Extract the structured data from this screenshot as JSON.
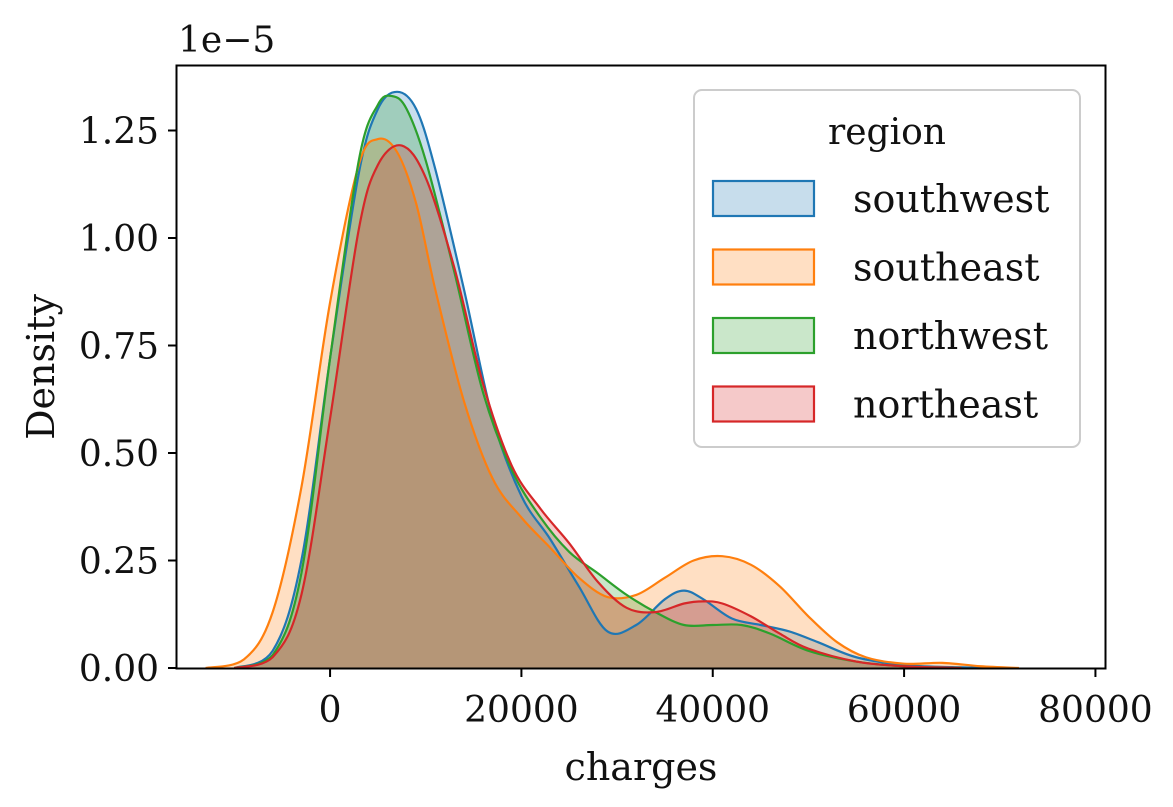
{
  "chart_data": {
    "type": "area",
    "title": "",
    "xlabel": "charges",
    "ylabel": "Density",
    "offset_text": "1e−5",
    "xlim": [
      -16000,
      81000
    ],
    "ylim": [
      0,
      1.4
    ],
    "xticks": [
      0,
      20000,
      40000,
      60000,
      80000
    ],
    "xtick_labels": [
      "0",
      "20000",
      "40000",
      "60000",
      "80000"
    ],
    "yticks": [
      0,
      0.25,
      0.5,
      0.75,
      1.0,
      1.25
    ],
    "ytick_labels": [
      "0.00",
      "0.25",
      "0.50",
      "0.75",
      "1.00",
      "1.25"
    ],
    "grid": false,
    "legend": {
      "title": "region",
      "placement": "upper right"
    },
    "series": [
      {
        "name": "southwest",
        "color": "#1f77b4",
        "x": [
          -10000,
          -6000,
          -3000,
          0,
          3000,
          5000,
          7000,
          9000,
          11000,
          14000,
          17000,
          20000,
          23000,
          26000,
          29000,
          32000,
          35000,
          37000,
          39000,
          42000,
          45000,
          48000,
          51000,
          55000,
          60000,
          65000,
          70000
        ],
        "y": [
          0.0,
          0.04,
          0.25,
          0.72,
          1.15,
          1.3,
          1.34,
          1.3,
          1.16,
          0.88,
          0.58,
          0.4,
          0.3,
          0.19,
          0.085,
          0.1,
          0.16,
          0.18,
          0.16,
          0.115,
          0.1,
          0.085,
          0.06,
          0.025,
          0.007,
          0.002,
          0.0
        ]
      },
      {
        "name": "southeast",
        "color": "#ff7f0e",
        "x": [
          -13000,
          -9000,
          -6000,
          -3000,
          0,
          3000,
          5000,
          7000,
          9000,
          11000,
          14000,
          17000,
          20000,
          23000,
          26000,
          29000,
          32000,
          35000,
          38000,
          41000,
          44000,
          47000,
          50000,
          53000,
          56000,
          60000,
          64000,
          68000,
          72000
        ],
        "y": [
          0.0,
          0.02,
          0.13,
          0.42,
          0.85,
          1.17,
          1.23,
          1.2,
          1.08,
          0.88,
          0.62,
          0.44,
          0.35,
          0.28,
          0.21,
          0.165,
          0.17,
          0.21,
          0.25,
          0.26,
          0.24,
          0.19,
          0.12,
          0.06,
          0.025,
          0.01,
          0.012,
          0.004,
          0.0
        ]
      },
      {
        "name": "northwest",
        "color": "#2ca02c",
        "x": [
          -10000,
          -6000,
          -3000,
          0,
          3000,
          5000,
          6500,
          8000,
          10000,
          13000,
          16000,
          19000,
          22000,
          25000,
          28000,
          31000,
          34000,
          37000,
          40000,
          43000,
          46000,
          50000,
          55000,
          60000,
          66000
        ],
        "y": [
          0.0,
          0.03,
          0.22,
          0.72,
          1.18,
          1.31,
          1.33,
          1.3,
          1.18,
          0.92,
          0.64,
          0.46,
          0.35,
          0.27,
          0.22,
          0.17,
          0.13,
          0.1,
          0.1,
          0.1,
          0.08,
          0.04,
          0.015,
          0.004,
          0.0
        ]
      },
      {
        "name": "northeast",
        "color": "#d62728",
        "x": [
          -10000,
          -6000,
          -3000,
          0,
          3000,
          5000,
          7500,
          10000,
          13000,
          16000,
          19000,
          22000,
          25000,
          28000,
          31000,
          34000,
          37000,
          39000,
          41000,
          44000,
          47000,
          50000,
          55000,
          60000,
          66000
        ],
        "y": [
          0.0,
          0.025,
          0.17,
          0.58,
          1.02,
          1.17,
          1.215,
          1.14,
          0.93,
          0.66,
          0.47,
          0.37,
          0.29,
          0.2,
          0.14,
          0.13,
          0.15,
          0.155,
          0.15,
          0.12,
          0.08,
          0.045,
          0.015,
          0.004,
          0.0
        ]
      }
    ]
  }
}
